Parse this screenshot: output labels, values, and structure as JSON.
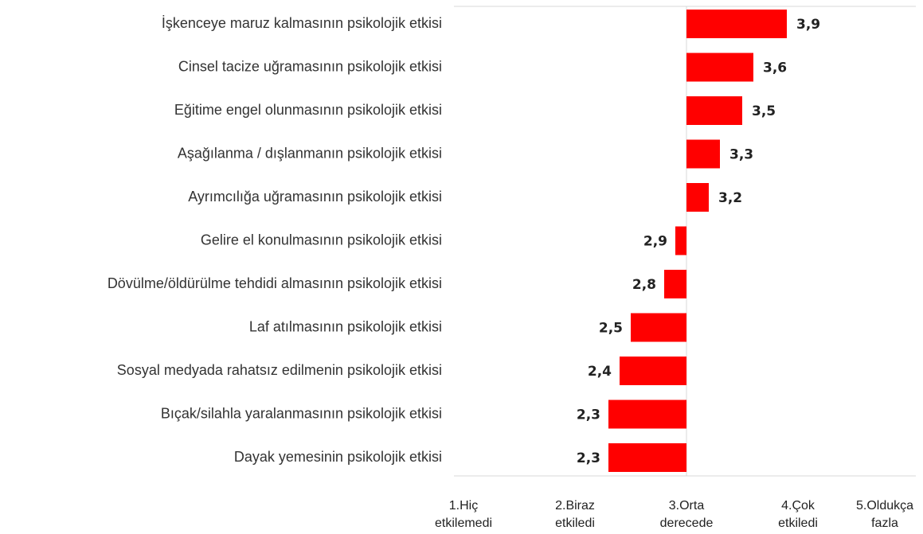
{
  "chart_data": {
    "type": "bar",
    "orientation": "horizontal",
    "categories": [
      "İşkenceye maruz kalmasının psikolojik etkisi",
      "Cinsel tacize uğramasının psikolojik etkisi",
      "Eğitime engel olunmasının psikolojik etkisi",
      "Aşağılanma / dışlanmanın psikolojik etkisi",
      "Ayrımcılığa uğramasının psikolojik etkisi",
      "Gelire el konulmasının psikolojik etkisi",
      "Dövülme/öldürülme tehdidi almasının psikolojik etkisi",
      "Laf atılmasının psikolojik etkisi",
      "Sosyal medyada rahatsız edilmenin psikolojik etkisi",
      "Bıçak/silahla yaralanmasının psikolojik etkisi",
      "Dayak yemesinin psikolojik etkisi"
    ],
    "values": [
      3.9,
      3.6,
      3.5,
      3.3,
      3.2,
      2.9,
      2.8,
      2.5,
      2.4,
      2.3,
      2.3
    ],
    "value_labels": [
      "3,9",
      "3,6",
      "3,5",
      "3,3",
      "3,2",
      "2,9",
      "2,8",
      "2,5",
      "2,4",
      "2,3",
      "2,3"
    ],
    "color": "#ff0000",
    "baseline": 3,
    "xlim": [
      1,
      5
    ],
    "xticks": [
      {
        "value": 1,
        "label": "1.Hiç etkilemedi"
      },
      {
        "value": 2,
        "label": "2.Biraz etkiledi"
      },
      {
        "value": 3,
        "label": "3.Orta derecede"
      },
      {
        "value": 4,
        "label": "4.Çok etkiledi"
      },
      {
        "value": 5,
        "label": "5.Oldukça fazla"
      }
    ]
  }
}
